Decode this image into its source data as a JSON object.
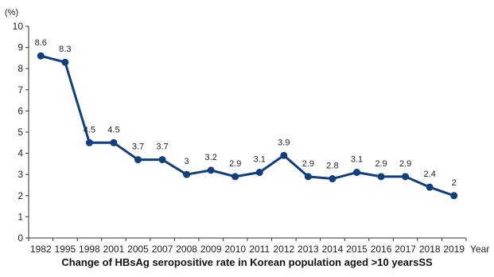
{
  "chart_data": {
    "type": "line",
    "title": "Change of HBsAg seropositive rate in Korean population aged >10 yearsSS",
    "ylabel": "(%)",
    "xlabel": "Year",
    "ylim": [
      0,
      10
    ],
    "yticks": [
      0,
      1,
      2,
      3,
      4,
      5,
      6,
      7,
      8,
      9,
      10
    ],
    "categories": [
      "1982",
      "1995",
      "1998",
      "2001",
      "2005",
      "2007",
      "2008",
      "2009",
      "2010",
      "2011",
      "2012",
      "2013",
      "2014",
      "2015",
      "2016",
      "2017",
      "2018",
      "2019"
    ],
    "series": [
      {
        "values": [
          8.6,
          8.3,
          4.5,
          4.5,
          3.7,
          3.7,
          3,
          3.2,
          2.9,
          3.1,
          3.9,
          2.9,
          2.8,
          3.1,
          2.9,
          2.9,
          2.4,
          2
        ],
        "labels": [
          "8.6",
          "8.3",
          "4.5",
          "4.5",
          "3.7",
          "3.7",
          "3",
          "3.2",
          "2.9",
          "3.1",
          "3.9",
          "2.9",
          "2.8",
          "3.1",
          "2.9",
          "2.9",
          "2.4",
          "2"
        ],
        "color": "#0f3f7f"
      }
    ],
    "grid": false,
    "legend": "none"
  }
}
